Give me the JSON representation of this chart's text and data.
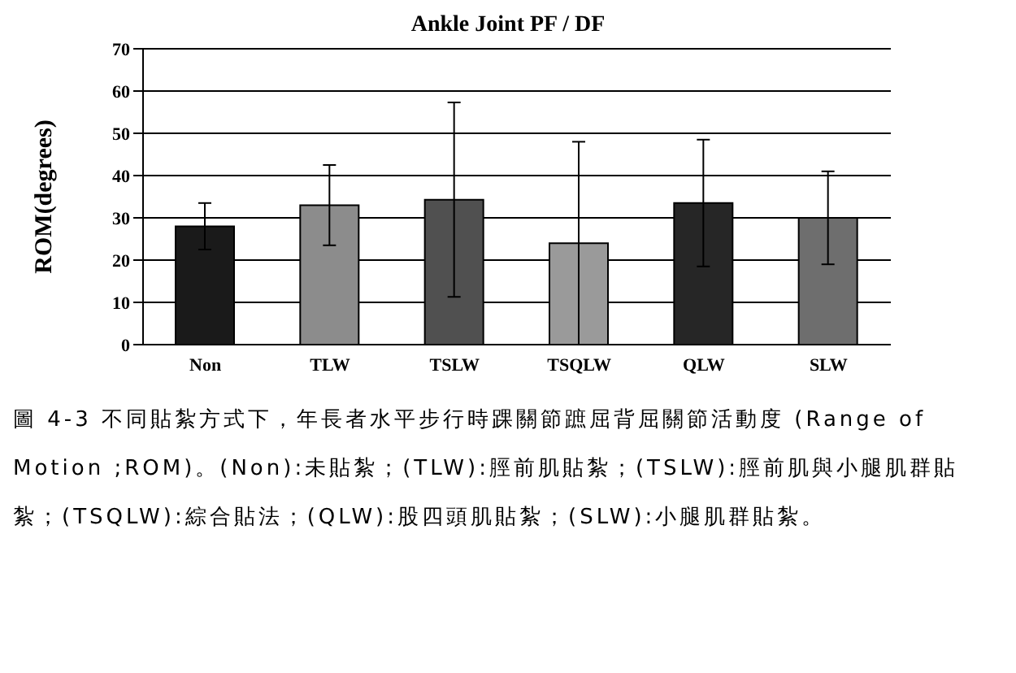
{
  "chart_data": {
    "type": "bar",
    "title": "Ankle Joint PF / DF",
    "ylabel": "ROM(degrees)",
    "categories": [
      "Non",
      "TLW",
      "TSLW",
      "TSQLW",
      "QLW",
      "SLW"
    ],
    "values": [
      28,
      33,
      34.3,
      24,
      33.5,
      30
    ],
    "errors": [
      5.5,
      9.5,
      23,
      24,
      15,
      11
    ],
    "colors": [
      "#1a1a1a",
      "#8c8c8c",
      "#505050",
      "#9a9a9a",
      "#262626",
      "#6e6e6e"
    ],
    "ylim": [
      0,
      70
    ],
    "yticks": [
      0,
      10,
      20,
      30,
      40,
      50,
      60,
      70
    ],
    "grid": "y",
    "annotations": [
      "圖 4-3 不同貼紮方式下，年長者水平步行時踝關節蹠屈背屈關節活動度 (Range of Motion ;ROM)。(Non):未貼紮；(TLW):脛前肌貼紮；(TSLW):脛前肌與小腿肌群貼紮；(TSQLW):綜合貼法；(QLW):股四頭肌貼紮；(SLW):小腿肌群貼紮。"
    ]
  }
}
